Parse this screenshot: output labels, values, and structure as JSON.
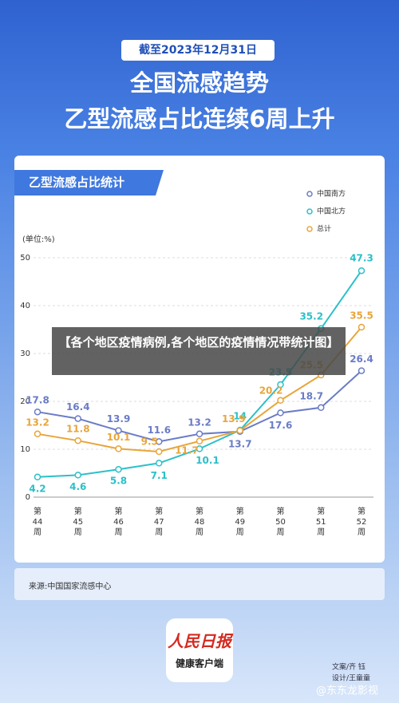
{
  "date_badge": "截至2023年12月31日",
  "title": "全国流感趋势",
  "subtitle": "乙型流感占比连续6周上升",
  "chart_data": {
    "type": "line",
    "title": "乙型流感占比统计",
    "y_label": "(单位:%)",
    "categories": [
      "第44周",
      "第45周",
      "第46周",
      "第47周",
      "第48周",
      "第49周",
      "第50周",
      "第51周",
      "第52周"
    ],
    "series": [
      {
        "name": "中国南方",
        "color": "#6a7cc6",
        "values": [
          17.8,
          16.4,
          13.9,
          11.6,
          13.2,
          13.7,
          17.6,
          18.7,
          26.4
        ]
      },
      {
        "name": "中国北方",
        "color": "#2cc0c8",
        "values": [
          4.2,
          4.6,
          5.8,
          7.1,
          10.1,
          14,
          23.5,
          35.2,
          47.3
        ]
      },
      {
        "name": "总计",
        "color": "#e8a53a",
        "values": [
          13.2,
          11.8,
          10.1,
          9.5,
          11.7,
          13.9,
          20.2,
          25.5,
          35.5
        ]
      }
    ],
    "ylim": [
      0,
      50
    ],
    "yticks": [
      0,
      10,
      20,
      30,
      40,
      50
    ],
    "grid": true,
    "legend": "top-right"
  },
  "source": "来源:中国国家流感中心",
  "overlay": "【各个地区疫情病例,各个地区的疫情情况带统计图】",
  "logo": {
    "name": "人民日报",
    "sub": "健康客户端"
  },
  "credits": [
    "文案/齐 钰",
    "设计/王童童"
  ],
  "watermark": "@东东龙影视"
}
